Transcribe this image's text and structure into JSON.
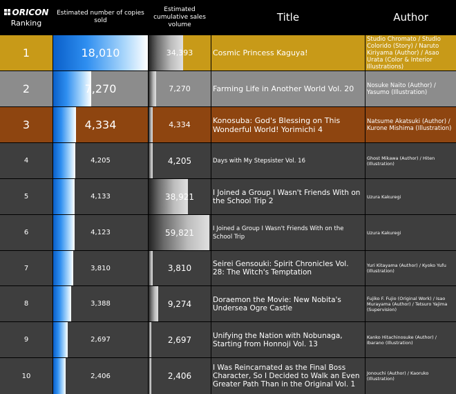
{
  "header": {
    "brand": "ORICON",
    "ranking": "Ranking",
    "copies_sold": "Estimated number of copies sold",
    "cumulative": "Estimated cumulative sales volume",
    "title": "Title",
    "author": "Author"
  },
  "colors": {
    "rank1_bg": "#c89a18",
    "rank2_bg": "#8c8c8c",
    "rank3_bg": "#8e4510",
    "other_bg": "#3e3e3e",
    "copies_bar": "#2e8ef0",
    "cumulative_bar": "#bdbdbd"
  },
  "chart_data": {
    "type": "table",
    "columns": [
      "Ranking",
      "Estimated number of copies sold",
      "Estimated cumulative sales volume",
      "Title",
      "Author"
    ],
    "rows": [
      {
        "rank": "1",
        "copies": 18010,
        "copies_label": "18,010",
        "cumulative": 34393,
        "cumulative_label": "34,393",
        "title": "Cosmic Princess Kaguya!",
        "author": "Studio Chromato / Studio Colorido (Story) / Naruto Kiriyama (Author) / Asao Urata (Color & Interior Illustrations)"
      },
      {
        "rank": "2",
        "copies": 7270,
        "copies_label": "7,270",
        "cumulative": 7270,
        "cumulative_label": "7,270",
        "title": "Farming Life in Another World Vol. 20",
        "author": "Nosuke Naito (Author) / Yasumo (Illustration)"
      },
      {
        "rank": "3",
        "copies": 4334,
        "copies_label": "4,334",
        "cumulative": 4334,
        "cumulative_label": "4,334",
        "title": "Konosuba: God's Blessing on This Wonderful World! Yorimichi 4",
        "author": "Natsume Akatsuki (Author) / Kurone Mishima (Illustration)"
      },
      {
        "rank": "4",
        "copies": 4205,
        "copies_label": "4,205",
        "cumulative": 4205,
        "cumulative_label": "4,205",
        "title": "Days with My Stepsister Vol. 16",
        "author": "Ghost Mikawa (Author) / Hiten (Illustration)"
      },
      {
        "rank": "5",
        "copies": 4133,
        "copies_label": "4,133",
        "cumulative": 38921,
        "cumulative_label": "38,921",
        "title": "I Joined a Group I Wasn't Friends With on the School Trip 2",
        "author": "Uzura Kakuregi"
      },
      {
        "rank": "6",
        "copies": 4123,
        "copies_label": "4,123",
        "cumulative": 59821,
        "cumulative_label": "59,821",
        "title": "I Joined a Group I Wasn't Friends With on the School Trip",
        "author": "Uzura Kakuregi"
      },
      {
        "rank": "7",
        "copies": 3810,
        "copies_label": "3,810",
        "cumulative": 3810,
        "cumulative_label": "3,810",
        "title": "Seirei Gensouki: Spirit Chronicles Vol. 28: The Witch's Temptation",
        "author": "Yuri Kitayama (Author) / Kyoko Yufu (Illustration)"
      },
      {
        "rank": "8",
        "copies": 3388,
        "copies_label": "3,388",
        "cumulative": 9274,
        "cumulative_label": "9,274",
        "title": "Doraemon the Movie: New Nobita's Undersea Ogre Castle",
        "author": "Fujiko F. Fujio (Original Work) / Isao Murayama (Author) / Tetsuro Yajima (Supervision)"
      },
      {
        "rank": "9",
        "copies": 2697,
        "copies_label": "2,697",
        "cumulative": 2697,
        "cumulative_label": "2,697",
        "title": "Unifying the Nation with Nobunaga, Starting from Honnoji Vol. 13",
        "author": "Kanko Hitachinosuke (Author) / Ibarano (Illustration)"
      },
      {
        "rank": "10",
        "copies": 2406,
        "copies_label": "2,406",
        "cumulative": 2406,
        "cumulative_label": "2,406",
        "title": "I Was Reincarnated as the Final Boss Character, So I Decided to Walk an Even Greater Path Than in the Original Vol. 1",
        "author": "Jonouchi (Author) / Kaoruko (Illustration)"
      }
    ]
  }
}
